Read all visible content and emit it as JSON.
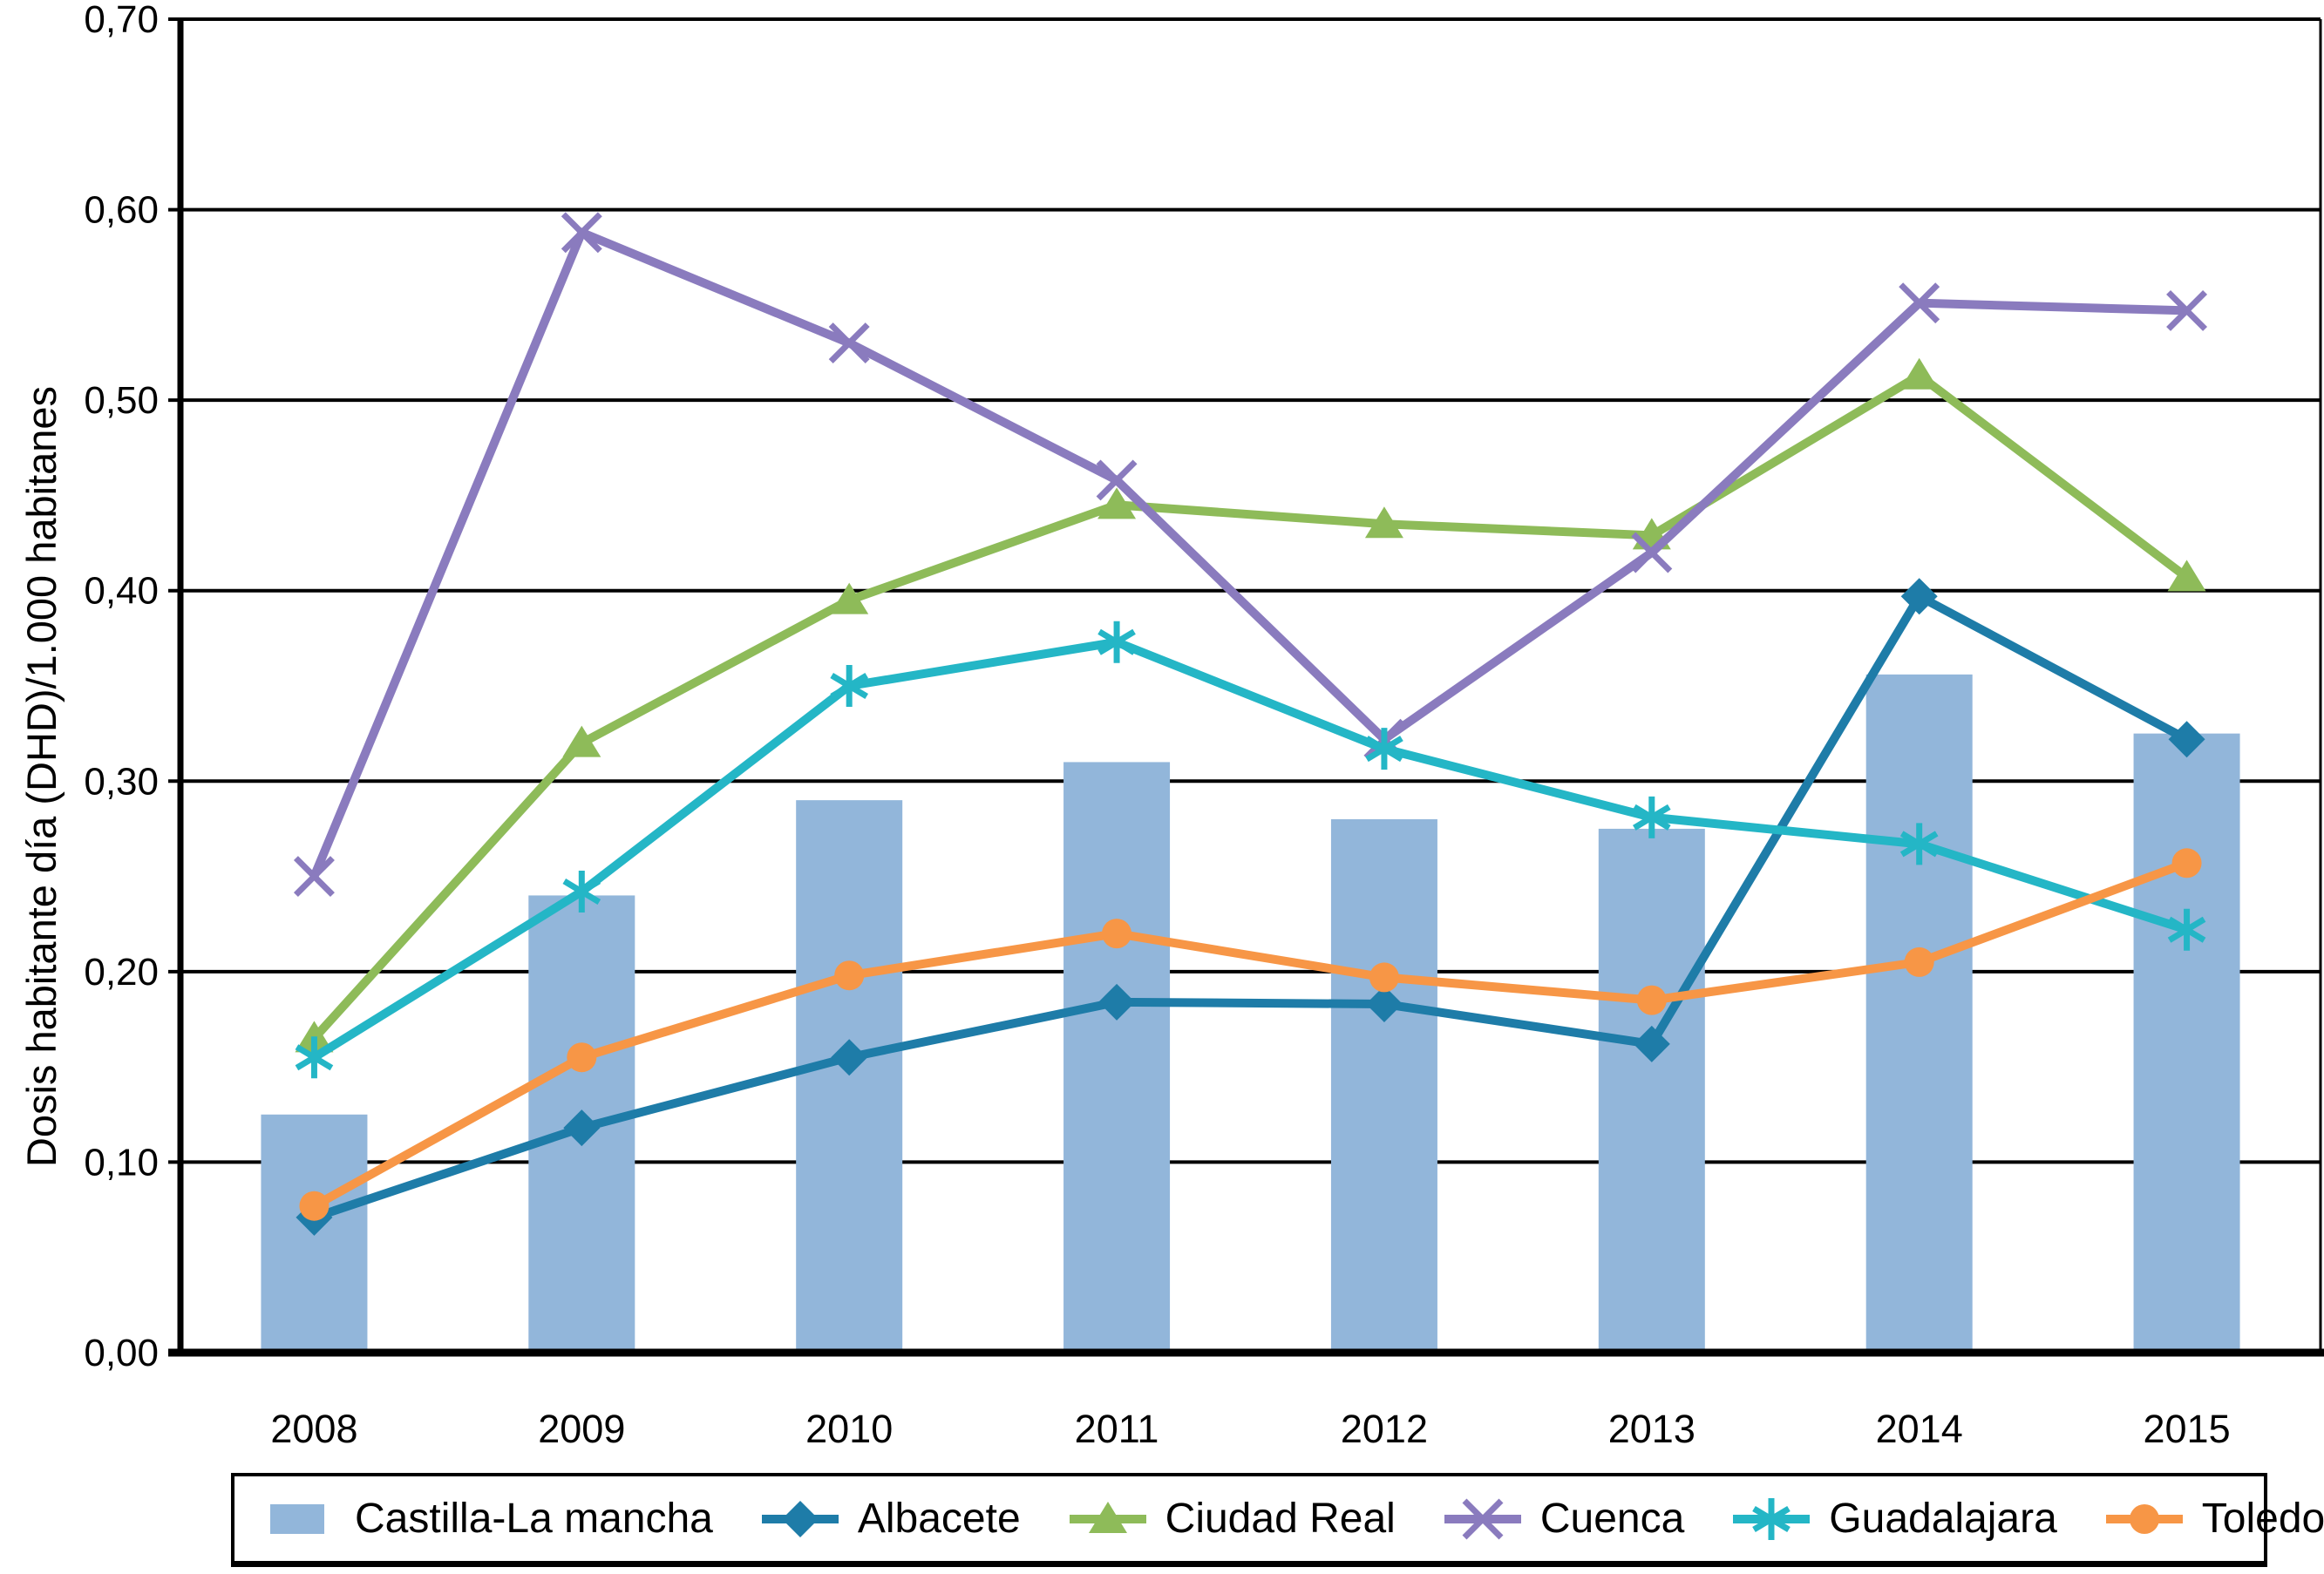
{
  "y_axis": {
    "title": "Dosis habitante día (DHD)/1.000 habitanes",
    "tick_labels": [
      "0,00",
      "0,10",
      "0,20",
      "0,30",
      "0,40",
      "0,50",
      "0,60",
      "0,70"
    ]
  },
  "x_axis": {
    "labels": [
      "2008",
      "2009",
      "2010",
      "2011",
      "2012",
      "2013",
      "2014",
      "2015"
    ]
  },
  "colors": {
    "bar": "#92B6DA",
    "albacete": "#1E7CA8",
    "ciudad_real": "#8EBB59",
    "cuenca": "#8A7BBE",
    "guadalajara": "#24B6C6",
    "toledo": "#F79646",
    "grid": "#000000",
    "text": "#000000"
  },
  "chart_data": {
    "type": "combo bar + line",
    "categories": [
      "2008",
      "2009",
      "2010",
      "2011",
      "2012",
      "2013",
      "2014",
      "2015"
    ],
    "series": [
      {
        "name": "Castilla-La mancha",
        "type": "bar",
        "marker": "square",
        "color": "#92B6DA",
        "values": [
          0.125,
          0.24,
          0.29,
          0.31,
          0.28,
          0.275,
          0.356,
          0.325
        ]
      },
      {
        "name": "Albacete",
        "type": "line",
        "marker": "diamond",
        "color": "#1E7CA8",
        "values": [
          0.071,
          0.118,
          0.155,
          0.184,
          0.183,
          0.162,
          0.397,
          0.322
        ]
      },
      {
        "name": "Ciudad Real",
        "type": "line",
        "marker": "triangle",
        "color": "#8EBB59",
        "values": [
          0.165,
          0.32,
          0.395,
          0.445,
          0.435,
          0.429,
          0.513,
          0.407
        ]
      },
      {
        "name": "Cuenca",
        "type": "line",
        "marker": "x",
        "color": "#8A7BBE",
        "values": [
          0.25,
          0.588,
          0.53,
          0.458,
          0.322,
          0.42,
          0.551,
          0.547
        ]
      },
      {
        "name": "Guadalajara",
        "type": "line",
        "marker": "asterisk",
        "color": "#24B6C6",
        "values": [
          0.155,
          0.242,
          0.35,
          0.373,
          0.317,
          0.281,
          0.267,
          0.222
        ]
      },
      {
        "name": "Toledo",
        "type": "line",
        "marker": "circle",
        "color": "#F79646",
        "values": [
          0.077,
          0.155,
          0.198,
          0.22,
          0.197,
          0.185,
          0.205,
          0.257
        ]
      }
    ],
    "title": "",
    "xlabel": "",
    "ylabel": "Dosis habitante día (DHD)/1.000 habitanes",
    "ylim": [
      0,
      0.7
    ],
    "ytick_step": 0.1,
    "decimal_separator": ",",
    "grid": true,
    "legend_position": "bottom"
  }
}
